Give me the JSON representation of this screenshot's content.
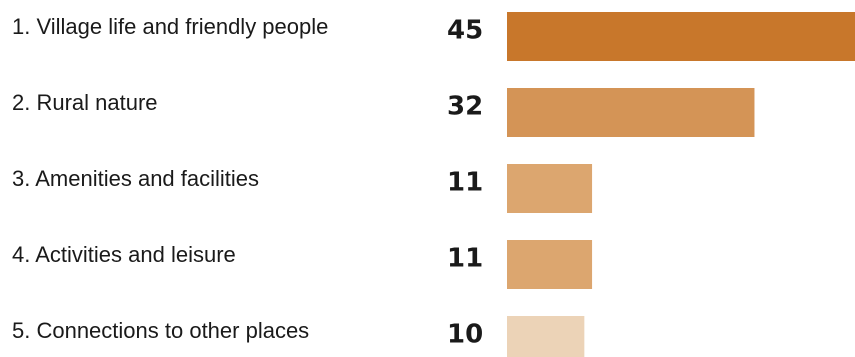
{
  "chart_data": {
    "type": "bar",
    "orientation": "horizontal",
    "categories": [
      "1. Village life and friendly people",
      "2. Rural nature",
      "3. Amenities and facilities",
      "4. Activities and leisure",
      "5. Connections to other places"
    ],
    "values": [
      45,
      32,
      11,
      11,
      10
    ],
    "value_labels": [
      "45",
      "32",
      "11",
      "11",
      "10"
    ],
    "colors": [
      "#c8772b",
      "#d49456",
      "#dca66f",
      "#dca66f",
      "#ecd3b7"
    ],
    "title": "",
    "xlabel": "",
    "ylabel": "",
    "xlim": [
      0,
      45
    ],
    "grid": false,
    "legend": "none"
  }
}
